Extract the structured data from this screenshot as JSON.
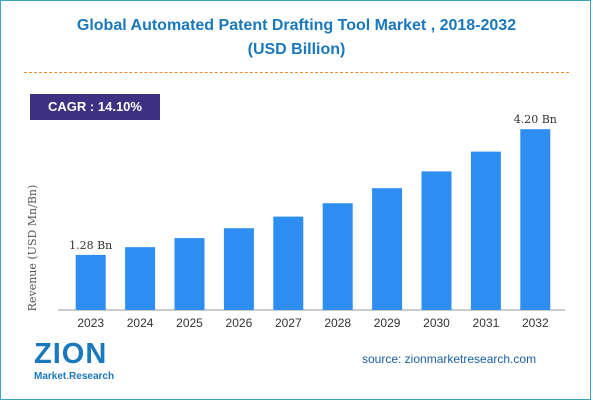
{
  "header": {
    "title_line1": "Global Automated Patent Drafting Tool Market , 2018-2032",
    "title_line2": "(USD Billion)"
  },
  "cagr": {
    "label": "CAGR :",
    "value": "14.10%"
  },
  "source": "source: zionmarketresearch.com",
  "logo": {
    "word": "ZION",
    "sub_left": "Market",
    "sub_dot": ".",
    "sub_right": "Research"
  },
  "colors": {
    "bar": "#2d8df0",
    "title": "#1a78bd",
    "cagr_bg": "#3f3182",
    "divider": "#f08a2a"
  },
  "chart_data": {
    "type": "bar",
    "categories": [
      "2023",
      "2024",
      "2025",
      "2026",
      "2027",
      "2028",
      "2029",
      "2030",
      "2031",
      "2032"
    ],
    "values": [
      1.28,
      1.46,
      1.67,
      1.9,
      2.17,
      2.48,
      2.83,
      3.22,
      3.68,
      4.2
    ],
    "data_labels": [
      {
        "index": 0,
        "text": "1.28 Bn"
      },
      {
        "index": 9,
        "text": "4.20 Bn"
      }
    ],
    "ylabel": "Revenue (USD Mn/Bn)",
    "xlabel": "",
    "ylim": [
      0,
      4.6
    ],
    "grid": false,
    "legend": "none"
  }
}
